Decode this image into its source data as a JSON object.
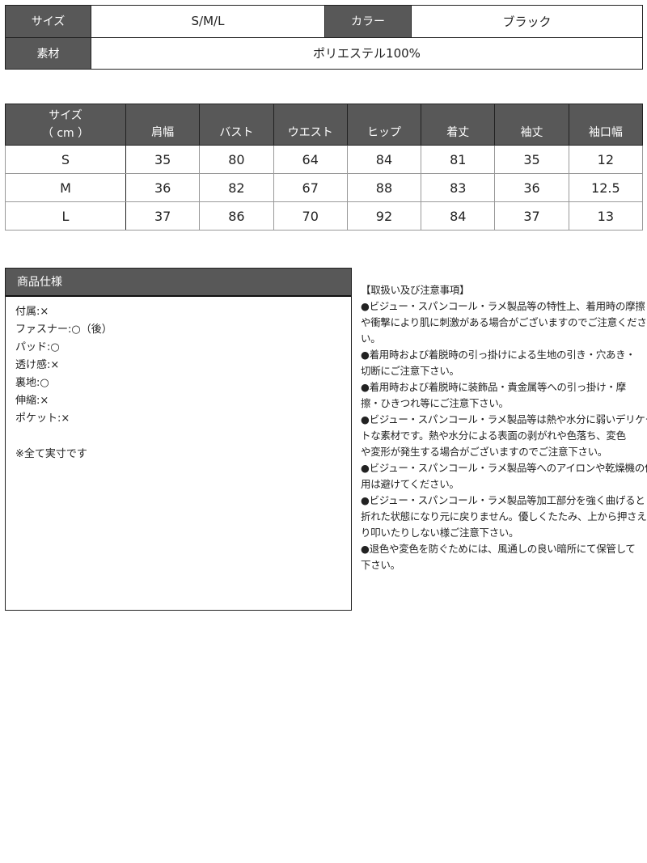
{
  "basic": {
    "size_label": "サイズ",
    "size_value": "S/M/L",
    "color_label": "カラー",
    "color_value": "ブラック",
    "material_label": "素材",
    "material_value": "ポリエステル100%"
  },
  "size_table": {
    "header_line1": "サイズ",
    "header_line2": "（ cm ）",
    "columns": [
      "肩幅",
      "バスト",
      "ウエスト",
      "ヒップ",
      "着丈",
      "袖丈",
      "袖口幅"
    ],
    "rows": [
      {
        "size": "S",
        "values": [
          "35",
          "80",
          "64",
          "84",
          "81",
          "35",
          "12"
        ]
      },
      {
        "size": "M",
        "values": [
          "36",
          "82",
          "67",
          "88",
          "83",
          "36",
          "12.5"
        ]
      },
      {
        "size": "L",
        "values": [
          "37",
          "86",
          "70",
          "92",
          "84",
          "37",
          "13"
        ]
      }
    ]
  },
  "spec": {
    "title": "商品仕様",
    "items": [
      "付属:×",
      "ファスナー:○（後）",
      "パッド:○",
      "透け感:×",
      "裏地:○",
      "伸縮:×",
      "ポケット:×"
    ],
    "note": "※全て実寸です"
  },
  "notes": {
    "lines": [
      "【取扱い及び注意事項】",
      "●ビジュー・スパンコール・ラメ製品等の特性上、着用時の摩擦",
      "や衝撃により肌に刺激がある場合がございますのでご注意ください",
      "い。",
      "●着用時および着脱時の引っ掛けによる生地の引き・穴あき・",
      "切断にご注意下さい。",
      "●着用時および着脱時に装飾品・貴金属等への引っ掛け・摩",
      "擦・ひきつれ等にご注意下さい。",
      "●ビジュー・スパンコール・ラメ製品等は熱や水分に弱いデリケー",
      "トな素材です。熱や水分による表面の剥がれや色落ち、変色",
      "や変形が発生する場合がございますのでご注意下さい。",
      "●ビジュー・スパンコール・ラメ製品等へのアイロンや乾燥機の使",
      "用は避けてください。",
      "●ビジュー・スパンコール・ラメ製品等加工部分を強く曲げると",
      "折れた状態になり元に戻りません。優しくたたみ、上から押さえた",
      "り叩いたりしない様ご注意下さい。",
      "●退色や変色を防ぐためには、風通しの良い暗所にて保管して",
      "下さい。"
    ]
  }
}
